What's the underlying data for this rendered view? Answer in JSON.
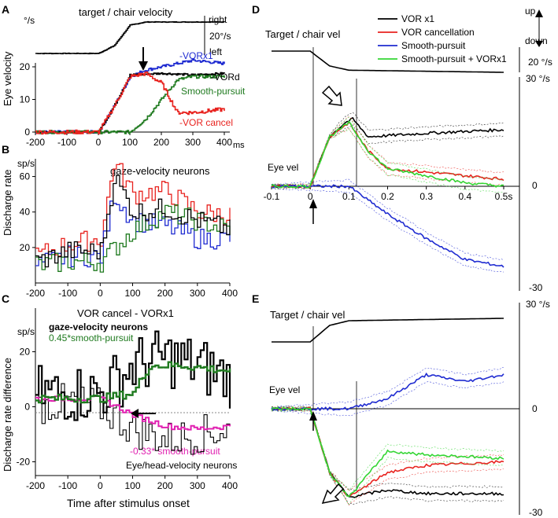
{
  "panel_labels": {
    "A": "A",
    "B": "B",
    "C": "C",
    "D": "D",
    "E": "E"
  },
  "ms_unit": "ms",
  "panelA": {
    "title": "target / chair velocity",
    "right": "right",
    "left": "left",
    "scale_label": "20°/s",
    "y_unit": "°/s",
    "y_label": "Eye velocity",
    "labels": {
      "vorx1": "-VORx1",
      "vord": "-VORd",
      "sp": "Smooth-pursuit",
      "cancel": "-VOR cancel"
    }
  },
  "panelB": {
    "title": "gaze-velocity neurons",
    "y_unit": "sp/s",
    "y_label": "Discharge rate"
  },
  "panelC": {
    "title": "VOR cancel - VORx1",
    "y_unit": "sp/s",
    "y_label": "Discharge rate difference",
    "gaze": "gaze-velocity neurons",
    "sp045": "0.45*smooth-pursuit",
    "neg033": "-0.33* smooth-pursuit",
    "eyehead": "Eye/head-velocity neurons",
    "x_label": "Time after stimulus onset"
  },
  "legend": [
    {
      "label": "VOR x1",
      "color": "#000000"
    },
    {
      "label": "VOR cancellation",
      "color": "#e8231f"
    },
    {
      "label": "Smooth-pursuit",
      "color": "#1f2bd1"
    },
    {
      "label": "Smooth-pursuit + VORx1",
      "color": "#34d634"
    }
  ],
  "panelD": {
    "top_label": "Target / chair vel",
    "eye_label": "Eye vel",
    "up": "up",
    "down": "down",
    "scale_label": "20 °/s",
    "y_top": "30 °/s",
    "y_zero": "0",
    "y_bottom": "-30"
  },
  "panelE": {
    "top_label": "Target / chair vel",
    "eye_label": "Eye vel",
    "y_top": "30 °/s",
    "y_zero": "0",
    "y_bottom": "-30"
  },
  "colors": {
    "black": "#000000",
    "red": "#e8231f",
    "blue": "#1f2bd1",
    "green": "#34d634",
    "darkgreen": "#1f7a1f",
    "magenta": "#e020b0"
  },
  "chart_data": [
    {
      "type": "line",
      "id": "A",
      "xlim": [
        -200,
        400
      ],
      "ylim": [
        0,
        20
      ],
      "x": [
        -200,
        -100,
        0,
        100,
        200,
        300,
        400
      ],
      "yticks": [
        0,
        10,
        20
      ],
      "series": [
        {
          "name": "target / chair velocity",
          "values": [
            [
              -200,
              0
            ],
            [
              0,
              0
            ],
            [
              50,
              5
            ],
            [
              100,
              18
            ],
            [
              150,
              20
            ],
            [
              400,
              20
            ]
          ]
        },
        {
          "name": "-VORx1",
          "values": [
            [
              -200,
              0
            ],
            [
              0,
              0
            ],
            [
              50,
              8
            ],
            [
              100,
              17
            ],
            [
              150,
              19
            ],
            [
              250,
              21
            ],
            [
              300,
              22
            ],
            [
              400,
              21
            ]
          ]
        },
        {
          "name": "-VORd",
          "values": [
            [
              -200,
              0
            ],
            [
              0,
              0
            ],
            [
              50,
              8
            ],
            [
              100,
              17.5
            ],
            [
              200,
              18
            ],
            [
              300,
              17.5
            ],
            [
              400,
              18
            ]
          ]
        },
        {
          "name": "Smooth-pursuit",
          "values": [
            [
              -200,
              0
            ],
            [
              100,
              0
            ],
            [
              150,
              4
            ],
            [
              200,
              10
            ],
            [
              250,
              16
            ],
            [
              300,
              17
            ],
            [
              400,
              17
            ]
          ]
        },
        {
          "name": "-VOR cancel",
          "values": [
            [
              -200,
              0
            ],
            [
              0,
              0
            ],
            [
              50,
              8
            ],
            [
              100,
              17
            ],
            [
              150,
              18
            ],
            [
              200,
              15
            ],
            [
              250,
              6
            ],
            [
              300,
              6
            ],
            [
              400,
              7
            ]
          ]
        }
      ]
    },
    {
      "type": "line",
      "id": "B",
      "title": "gaze-velocity neurons",
      "xlim": [
        -200,
        400
      ],
      "ylim": [
        0,
        70
      ],
      "x": [
        -200,
        -100,
        0,
        100,
        200,
        300,
        400
      ],
      "yticks": [
        20,
        40,
        60
      ],
      "series": [
        {
          "name": "black",
          "values": [
            [
              -200,
              12
            ],
            [
              -100,
              18
            ],
            [
              0,
              18
            ],
            [
              40,
              60
            ],
            [
              100,
              40
            ],
            [
              200,
              42
            ],
            [
              300,
              35
            ],
            [
              400,
              30
            ]
          ]
        },
        {
          "name": "red",
          "values": [
            [
              -200,
              15
            ],
            [
              -100,
              22
            ],
            [
              0,
              25
            ],
            [
              40,
              68
            ],
            [
              100,
              50
            ],
            [
              200,
              52
            ],
            [
              300,
              40
            ],
            [
              400,
              38
            ]
          ]
        },
        {
          "name": "blue",
          "values": [
            [
              -200,
              10
            ],
            [
              -100,
              15
            ],
            [
              0,
              15
            ],
            [
              40,
              50
            ],
            [
              100,
              35
            ],
            [
              200,
              32
            ],
            [
              300,
              25
            ],
            [
              400,
              25
            ]
          ]
        },
        {
          "name": "green",
          "values": [
            [
              -200,
              10
            ],
            [
              -100,
              12
            ],
            [
              0,
              12
            ],
            [
              100,
              30
            ],
            [
              200,
              40
            ],
            [
              300,
              35
            ],
            [
              400,
              30
            ]
          ]
        }
      ]
    },
    {
      "type": "line",
      "id": "C",
      "title": "VOR cancel - VORx1",
      "xlim": [
        -200,
        400
      ],
      "ylim": [
        -20,
        30
      ],
      "x": [
        -200,
        -100,
        0,
        100,
        200,
        300,
        400
      ],
      "yticks": [
        -20,
        0,
        20
      ],
      "series": [
        {
          "name": "gaze-velocity neurons",
          "values": [
            [
              -200,
              5
            ],
            [
              -100,
              5
            ],
            [
              0,
              5
            ],
            [
              100,
              15
            ],
            [
              200,
              18
            ],
            [
              300,
              15
            ],
            [
              400,
              10
            ]
          ]
        },
        {
          "name": "0.45*smooth-pursuit",
          "values": [
            [
              -200,
              3
            ],
            [
              0,
              3
            ],
            [
              100,
              5
            ],
            [
              150,
              15
            ],
            [
              250,
              15
            ],
            [
              400,
              13
            ]
          ]
        },
        {
          "name": "-0.33* smooth-pursuit",
          "values": [
            [
              -200,
              3
            ],
            [
              0,
              3
            ],
            [
              100,
              -3
            ],
            [
              200,
              -7
            ],
            [
              300,
              -8
            ],
            [
              400,
              -7
            ]
          ]
        },
        {
          "name": "Eye/head-velocity neurons",
          "values": [
            [
              -200,
              0
            ],
            [
              -100,
              2
            ],
            [
              0,
              0
            ],
            [
              100,
              -8
            ],
            [
              200,
              -12
            ],
            [
              300,
              -10
            ],
            [
              400,
              -8
            ]
          ]
        }
      ]
    },
    {
      "type": "line",
      "id": "D",
      "xlim": [
        -0.1,
        0.5
      ],
      "ylim": [
        -30,
        30
      ],
      "xticks": [
        "-0.1",
        "0",
        "0.1",
        "0.2",
        "0.3",
        "0.4",
        "0.5s"
      ],
      "series": [
        {
          "name": "VOR x1",
          "values": [
            [
              -0.1,
              0
            ],
            [
              0,
              0
            ],
            [
              0.05,
              14
            ],
            [
              0.09,
              18
            ],
            [
              0.11,
              19
            ],
            [
              0.15,
              14
            ],
            [
              0.3,
              15
            ],
            [
              0.5,
              16
            ]
          ]
        },
        {
          "name": "VOR cancellation",
          "values": [
            [
              -0.1,
              0
            ],
            [
              0,
              0
            ],
            [
              0.05,
              14
            ],
            [
              0.1,
              18
            ],
            [
              0.15,
              10
            ],
            [
              0.2,
              5
            ],
            [
              0.3,
              4
            ],
            [
              0.4,
              3
            ],
            [
              0.5,
              2
            ]
          ]
        },
        {
          "name": "Smooth-pursuit",
          "values": [
            [
              -0.1,
              0
            ],
            [
              0.1,
              0
            ],
            [
              0.2,
              -8
            ],
            [
              0.3,
              -15
            ],
            [
              0.4,
              -21
            ],
            [
              0.5,
              -23
            ]
          ]
        },
        {
          "name": "Smooth-pursuit + VORx1",
          "values": [
            [
              -0.1,
              0
            ],
            [
              0,
              0
            ],
            [
              0.05,
              14
            ],
            [
              0.1,
              18
            ],
            [
              0.15,
              10
            ],
            [
              0.2,
              5
            ],
            [
              0.3,
              3
            ],
            [
              0.4,
              1
            ],
            [
              0.5,
              0
            ]
          ]
        }
      ]
    },
    {
      "type": "line",
      "id": "E",
      "xlim": [
        -0.1,
        0.5
      ],
      "ylim": [
        -30,
        30
      ],
      "series": [
        {
          "name": "VOR x1",
          "values": [
            [
              -0.1,
              0
            ],
            [
              0,
              0
            ],
            [
              0.05,
              -18
            ],
            [
              0.1,
              -25
            ],
            [
              0.2,
              -23
            ],
            [
              0.3,
              -24
            ],
            [
              0.5,
              -24
            ]
          ]
        },
        {
          "name": "VOR cancellation",
          "values": [
            [
              -0.1,
              0
            ],
            [
              0,
              0
            ],
            [
              0.05,
              -18
            ],
            [
              0.1,
              -25
            ],
            [
              0.2,
              -18
            ],
            [
              0.3,
              -16
            ],
            [
              0.5,
              -15
            ]
          ]
        },
        {
          "name": "Smooth-pursuit",
          "values": [
            [
              -0.1,
              0
            ],
            [
              0.1,
              0
            ],
            [
              0.2,
              3
            ],
            [
              0.3,
              10
            ],
            [
              0.4,
              8
            ],
            [
              0.5,
              10
            ]
          ]
        },
        {
          "name": "Smooth-pursuit + VORx1",
          "values": [
            [
              -0.1,
              0
            ],
            [
              0,
              0
            ],
            [
              0.05,
              -18
            ],
            [
              0.1,
              -25
            ],
            [
              0.2,
              -12
            ],
            [
              0.3,
              -13
            ],
            [
              0.5,
              -14
            ]
          ]
        }
      ]
    }
  ]
}
